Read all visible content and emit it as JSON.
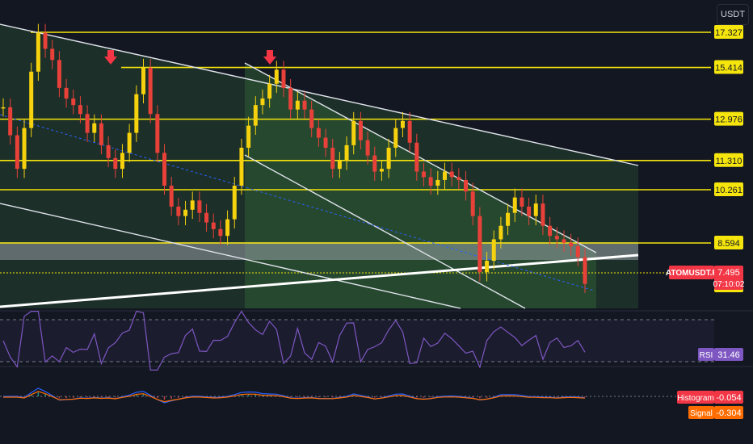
{
  "quote_currency": "USDT",
  "symbol": "ATOMUSDT.P",
  "last_price": "7.495",
  "countdown": "07:10:02",
  "price_levels": [
    {
      "label": "17.327",
      "value": 17.327
    },
    {
      "label": "15.414",
      "value": 15.414
    },
    {
      "label": "12.976",
      "value": 12.976
    },
    {
      "label": "11.310",
      "value": 11.31
    },
    {
      "label": "10.261",
      "value": 10.261
    },
    {
      "label": "8.594",
      "value": 8.594
    },
    {
      "label": "7.453",
      "value": 7.453
    }
  ],
  "rsi": {
    "name": "RSI",
    "value": "31.46"
  },
  "macd": {
    "histogram_label": "Histogram",
    "histogram_value": "-0.054",
    "signal_label": "Signal",
    "signal_value": "-0.304"
  },
  "colors": {
    "background": "#131722",
    "level_line": "#f5e50c",
    "up_candle": "#f6d10e",
    "down_candle": "#e8413a",
    "channel_fill": "#2f5d35",
    "channel_line": "#ffffff",
    "rsi_line": "#7e57c2",
    "macd_line": "#2962ff",
    "signal_line": "#ff6d00",
    "histogram_badge": "#f23645",
    "signal_badge": "#ff6d00",
    "symbol_badge": "#f23645"
  },
  "chart_data": {
    "type": "candlestick",
    "horizontal_levels": [
      17.327,
      15.414,
      12.976,
      11.31,
      10.261,
      8.594,
      7.453
    ],
    "close_series": [
      13.5,
      12.3,
      11.0,
      12.6,
      15.2,
      17.3,
      16.4,
      15.8,
      14.4,
      13.9,
      13.6,
      13.2,
      12.4,
      12.8,
      11.9,
      11.4,
      11.0,
      11.6,
      12.4,
      14.1,
      15.4,
      13.2,
      11.6,
      10.4,
      9.7,
      9.4,
      9.6,
      9.9,
      9.5,
      9.2,
      9.0,
      8.8,
      9.3,
      10.4,
      11.8,
      12.7,
      13.6,
      13.9,
      14.6,
      15.3,
      14.4,
      13.4,
      13.8,
      13.4,
      12.6,
      12.2,
      11.8,
      11.0,
      11.3,
      11.9,
      12.9,
      12.1,
      11.5,
      10.9,
      11.0,
      11.8,
      12.6,
      12.9,
      12.0,
      10.9,
      10.7,
      10.4,
      10.6,
      10.9,
      10.7,
      10.6,
      10.2,
      9.4,
      7.8,
      8.1,
      8.7,
      9.1,
      9.5,
      10.0,
      9.7,
      9.4,
      9.8,
      9.1,
      8.8,
      8.7,
      8.6,
      8.5,
      8.2,
      7.5
    ],
    "rsi_value": 31.46,
    "macd_histogram": -0.054,
    "macd_signal": -0.304
  }
}
